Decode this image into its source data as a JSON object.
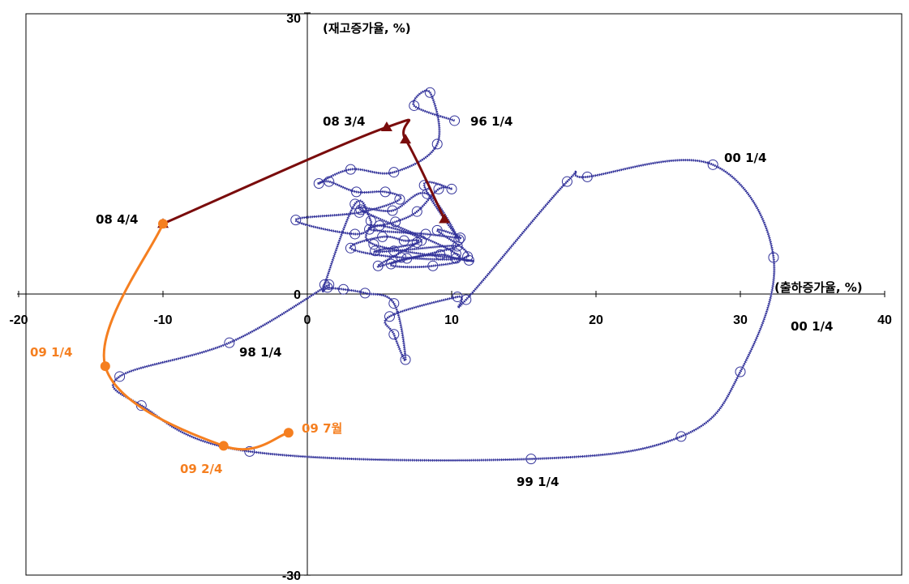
{
  "chart_data": {
    "type": "scatter",
    "title": "",
    "xlabel": "(출하증가율, %)",
    "ylabel": "(재고증가율, %)",
    "xlim": [
      -20,
      40
    ],
    "ylim": [
      -30,
      30
    ],
    "x_ticks": [
      "-20",
      "-10",
      "0",
      "10",
      "20",
      "30",
      "40"
    ],
    "y_ticks": [
      "30",
      "0",
      "-30"
    ],
    "grid": false,
    "legend": "none",
    "colors": {
      "blue": "#33339a",
      "dark_red": "#7a0c0c",
      "orange": "#f57f20",
      "axis": "#000000"
    },
    "series": [
      {
        "color": "#33339a",
        "style": "line-open-circle-markers",
        "points": [
          [
            10.2,
            18.5
          ],
          [
            7.4,
            20.1
          ],
          [
            8.5,
            21.5
          ],
          [
            9.0,
            16.0
          ],
          [
            6.0,
            13.0
          ],
          [
            3.0,
            13.3
          ],
          [
            0.8,
            11.8
          ],
          [
            1.5,
            12.0
          ],
          [
            3.4,
            10.9
          ],
          [
            5.4,
            10.9
          ],
          [
            6.4,
            10.1
          ],
          [
            3.6,
            8.7
          ],
          [
            -0.8,
            7.9
          ],
          [
            3.3,
            6.4
          ],
          [
            5.0,
            7.3
          ],
          [
            7.9,
            5.7
          ],
          [
            4.7,
            4.6
          ],
          [
            6.0,
            4.6
          ],
          [
            10.4,
            5.1
          ],
          [
            5.8,
            3.2
          ],
          [
            8.7,
            3.0
          ],
          [
            10.3,
            4.3
          ],
          [
            3.7,
            9.0
          ],
          [
            5.9,
            8.9
          ],
          [
            8.3,
            10.7
          ],
          [
            10.5,
            5.8
          ],
          [
            8.1,
            11.6
          ],
          [
            10.0,
            11.2
          ],
          [
            9.1,
            11.2
          ],
          [
            7.6,
            8.8
          ],
          [
            6.1,
            7.7
          ],
          [
            4.3,
            6.9
          ],
          [
            8.2,
            6.4
          ],
          [
            10.6,
            6.0
          ],
          [
            9.0,
            6.8
          ],
          [
            11.1,
            4.0
          ],
          [
            6.5,
            3.9
          ],
          [
            3.0,
            4.9
          ],
          [
            5.2,
            6.1
          ],
          [
            6.7,
            5.7
          ],
          [
            7.6,
            5.5
          ],
          [
            4.9,
            3.0
          ],
          [
            6.9,
            3.8
          ],
          [
            9.2,
            4.2
          ],
          [
            10.3,
            3.8
          ],
          [
            11.2,
            3.6
          ],
          [
            4.6,
            5.3
          ],
          [
            4.4,
            7.8
          ],
          [
            3.3,
            9.6
          ],
          [
            1.2,
            1.0
          ],
          [
            1.4,
            0.7
          ],
          [
            2.5,
            0.5
          ],
          [
            4.0,
            0.1
          ],
          [
            6.0,
            -1.0
          ],
          [
            6.8,
            -7.0
          ],
          [
            6.0,
            -4.3
          ],
          [
            5.7,
            -2.4
          ],
          [
            10.4,
            -0.3
          ],
          [
            11.0,
            -0.6
          ],
          [
            18.0,
            12.0
          ],
          [
            19.4,
            12.5
          ],
          [
            28.1,
            13.8
          ],
          [
            32.3,
            3.9
          ],
          [
            30.0,
            -8.3
          ],
          [
            25.9,
            -15.2
          ],
          [
            15.5,
            -17.6
          ],
          [
            -4.0,
            -16.8
          ],
          [
            -11.5,
            -11.9
          ],
          [
            -13.0,
            -8.8
          ],
          [
            -5.4,
            -5.2
          ],
          [
            1.5,
            1.0
          ]
        ]
      },
      {
        "color": "#7a0c0c",
        "style": "line-triangle-markers",
        "points": [
          [
            9.5,
            8.0
          ],
          [
            6.8,
            16.5
          ],
          [
            5.5,
            17.8
          ],
          [
            -10.0,
            7.5
          ]
        ]
      },
      {
        "color": "#f57f20",
        "style": "line-circle-markers",
        "points": [
          [
            -10.0,
            7.5
          ],
          [
            -14.0,
            -7.7
          ],
          [
            -5.8,
            -16.2
          ],
          [
            -1.3,
            -14.8
          ]
        ]
      }
    ],
    "annotations": [
      {
        "text": "96 1/4",
        "color": "#000000"
      },
      {
        "text": "08 3/4",
        "color": "#000000"
      },
      {
        "text": "00 1/4",
        "color": "#000000"
      },
      {
        "text": "08 4/4",
        "color": "#000000"
      },
      {
        "text": "00 1/4",
        "color": "#000000"
      },
      {
        "text": "98 1/4",
        "color": "#000000"
      },
      {
        "text": "99 1/4",
        "color": "#000000"
      },
      {
        "text": "09 1/4",
        "color": "#f57f20"
      },
      {
        "text": "09 7월",
        "color": "#f57f20"
      },
      {
        "text": "09 2/4",
        "color": "#f57f20"
      }
    ]
  }
}
